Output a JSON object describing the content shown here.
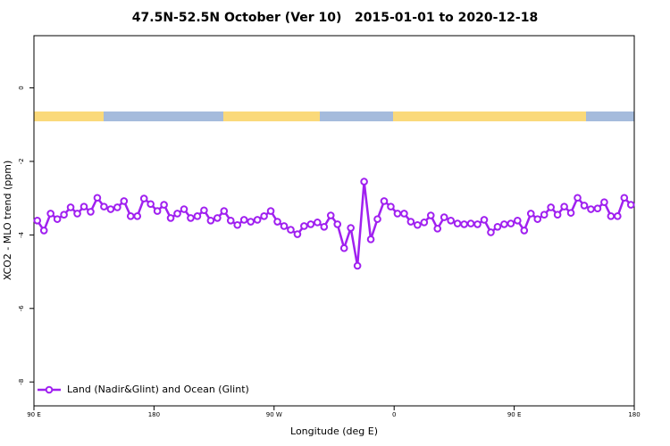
{
  "chart_data": {
    "type": "line",
    "title": "47.5N-52.5N October (Ver 10)   2015-01-01 to 2020-12-18",
    "x_label": "Longitude (deg E)",
    "y_label": "XCO2 - MLO trend (ppm)",
    "xlim": [
      90,
      540
    ],
    "ylim": [
      -8.65,
      1.42
    ],
    "xticks": [
      {
        "value": 90,
        "label": "90 E"
      },
      {
        "value": 180,
        "label": "180"
      },
      {
        "value": 270,
        "label": "90 W"
      },
      {
        "value": 360,
        "label": "0"
      },
      {
        "value": 450,
        "label": "90 E"
      },
      {
        "value": 540,
        "label": "180"
      }
    ],
    "yticks": [
      0,
      -2,
      -4,
      -6,
      -8
    ],
    "legend": "bottom-left",
    "x": [
      92.5,
      97.5,
      102.5,
      107.5,
      112.5,
      117.5,
      122.5,
      127.5,
      132.5,
      137.5,
      142.5,
      147.5,
      152.5,
      157.5,
      162.5,
      167.5,
      172.5,
      177.5,
      182.5,
      187.5,
      192.5,
      197.5,
      202.5,
      207.5,
      212.5,
      217.5,
      222.5,
      227.5,
      232.5,
      237.5,
      242.5,
      247.5,
      252.5,
      257.5,
      262.5,
      267.5,
      272.5,
      277.5,
      282.5,
      287.5,
      292.5,
      297.5,
      302.5,
      307.5,
      312.5,
      317.5,
      322.5,
      327.5,
      332.5,
      337.5,
      342.5,
      347.5,
      352.5,
      357.5,
      362.5,
      367.5,
      372.5,
      377.5,
      382.5,
      387.5,
      392.5,
      397.5,
      402.5,
      407.5,
      412.5,
      417.5,
      422.5,
      427.5,
      432.5,
      437.5,
      442.5,
      447.5,
      452.5,
      457.5,
      462.5,
      467.5,
      472.5,
      477.5,
      482.5,
      487.5,
      492.5,
      497.5,
      502.5,
      507.5,
      512.5,
      517.5,
      522.5,
      527.5,
      532.5,
      537.5
    ],
    "series": [
      {
        "name": "Land (Nadir&Glint) and Ocean (Glint)",
        "color": "#a020f0",
        "values": [
          -3.61,
          -3.88,
          -3.42,
          -3.57,
          -3.45,
          -3.25,
          -3.42,
          -3.23,
          -3.37,
          -2.99,
          -3.23,
          -3.3,
          -3.25,
          -3.08,
          -3.49,
          -3.49,
          -3.01,
          -3.16,
          -3.35,
          -3.18,
          -3.54,
          -3.42,
          -3.3,
          -3.54,
          -3.49,
          -3.33,
          -3.61,
          -3.54,
          -3.35,
          -3.61,
          -3.73,
          -3.59,
          -3.64,
          -3.59,
          -3.49,
          -3.35,
          -3.64,
          -3.76,
          -3.86,
          -3.98,
          -3.76,
          -3.71,
          -3.66,
          -3.78,
          -3.47,
          -3.71,
          -4.36,
          -3.81,
          -4.84,
          -2.55,
          -4.12,
          -3.57,
          -3.08,
          -3.23,
          -3.42,
          -3.42,
          -3.64,
          -3.73,
          -3.66,
          -3.47,
          -3.83,
          -3.52,
          -3.61,
          -3.69,
          -3.71,
          -3.69,
          -3.71,
          -3.59,
          -3.93,
          -3.78,
          -3.71,
          -3.69,
          -3.61,
          -3.88,
          -3.42,
          -3.57,
          -3.45,
          -3.25,
          -3.45,
          -3.23,
          -3.4,
          -2.99,
          -3.2,
          -3.3,
          -3.28,
          -3.11,
          -3.49,
          -3.49,
          -2.99,
          -3.18
        ]
      }
    ]
  }
}
